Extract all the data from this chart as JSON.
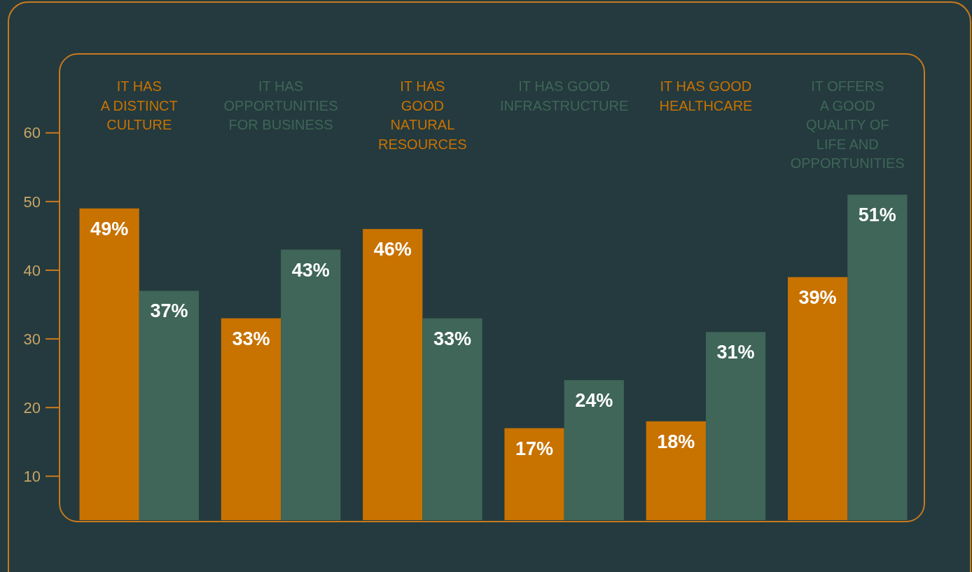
{
  "chart_data": {
    "type": "bar",
    "categories": [
      "IT HAS\nA DISTINCT\nCULTURE",
      "IT HAS\nOPPORTUNITIES\nFOR BUSINESS",
      "IT HAS\nGOOD\nNATURAL\nRESOURCES",
      "IT HAS GOOD\nINFRASTRUCTURE",
      "IT HAS GOOD\nHEALTHCARE",
      "IT OFFERS\nA GOOD\nQUALITY OF\nLIFE AND\nOPPORTUNITIES"
    ],
    "series": [
      {
        "color": "#c87200",
        "values": [
          49,
          33,
          46,
          17,
          18,
          39
        ],
        "value_labels": [
          "49%",
          "33%",
          "46%",
          "17%",
          "18%",
          "39%"
        ]
      },
      {
        "color": "#3f6658",
        "values": [
          37,
          43,
          33,
          24,
          31,
          51
        ],
        "value_labels": [
          "37%",
          "43%",
          "33%",
          "24%",
          "31%",
          "51%"
        ]
      }
    ],
    "ylim": [
      3.6,
      71.5
    ],
    "yticks": [
      10,
      20,
      30,
      40,
      50,
      60
    ]
  }
}
